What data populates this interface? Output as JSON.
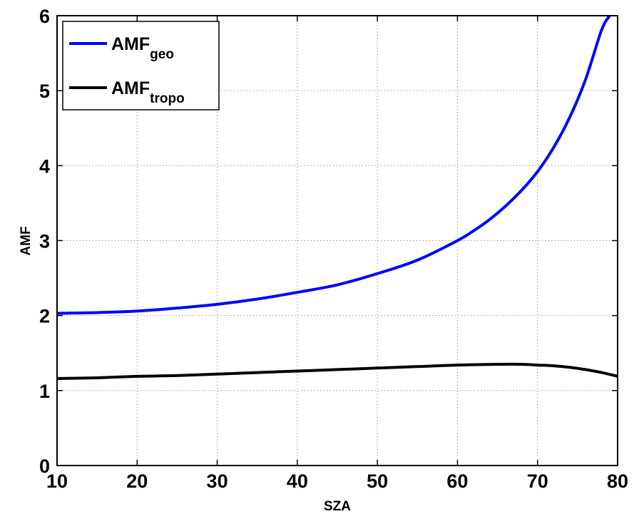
{
  "chart_data": {
    "type": "line",
    "xlabel": "SZA",
    "ylabel": "AMF",
    "xlim": [
      10,
      80
    ],
    "ylim": [
      0,
      6
    ],
    "xticks": [
      10,
      20,
      30,
      40,
      50,
      60,
      70,
      80
    ],
    "yticks": [
      0,
      1,
      2,
      3,
      4,
      5,
      6
    ],
    "grid": true,
    "legend_position": "top-left",
    "series": [
      {
        "name": "AMF_geo",
        "legend_main": "AMF",
        "legend_sub": "geo",
        "color": "#0000ff",
        "x": [
          10,
          15,
          20,
          25,
          30,
          35,
          40,
          45,
          50,
          55,
          60,
          62,
          64,
          66,
          68,
          70,
          72,
          74,
          76,
          78,
          79
        ],
        "y": [
          2.03,
          2.04,
          2.06,
          2.1,
          2.15,
          2.22,
          2.31,
          2.41,
          2.56,
          2.74,
          3.0,
          3.13,
          3.28,
          3.46,
          3.67,
          3.92,
          4.24,
          4.64,
          5.15,
          5.81,
          6.0
        ]
      },
      {
        "name": "AMF_tropo",
        "legend_main": "AMF",
        "legend_sub": "tropo",
        "color": "#000000",
        "x": [
          10,
          15,
          20,
          25,
          30,
          35,
          40,
          45,
          50,
          55,
          60,
          65,
          68,
          70,
          72,
          74,
          76,
          78,
          80
        ],
        "y": [
          1.16,
          1.17,
          1.19,
          1.2,
          1.22,
          1.24,
          1.26,
          1.28,
          1.3,
          1.32,
          1.34,
          1.35,
          1.35,
          1.34,
          1.33,
          1.31,
          1.28,
          1.24,
          1.19
        ]
      }
    ]
  }
}
